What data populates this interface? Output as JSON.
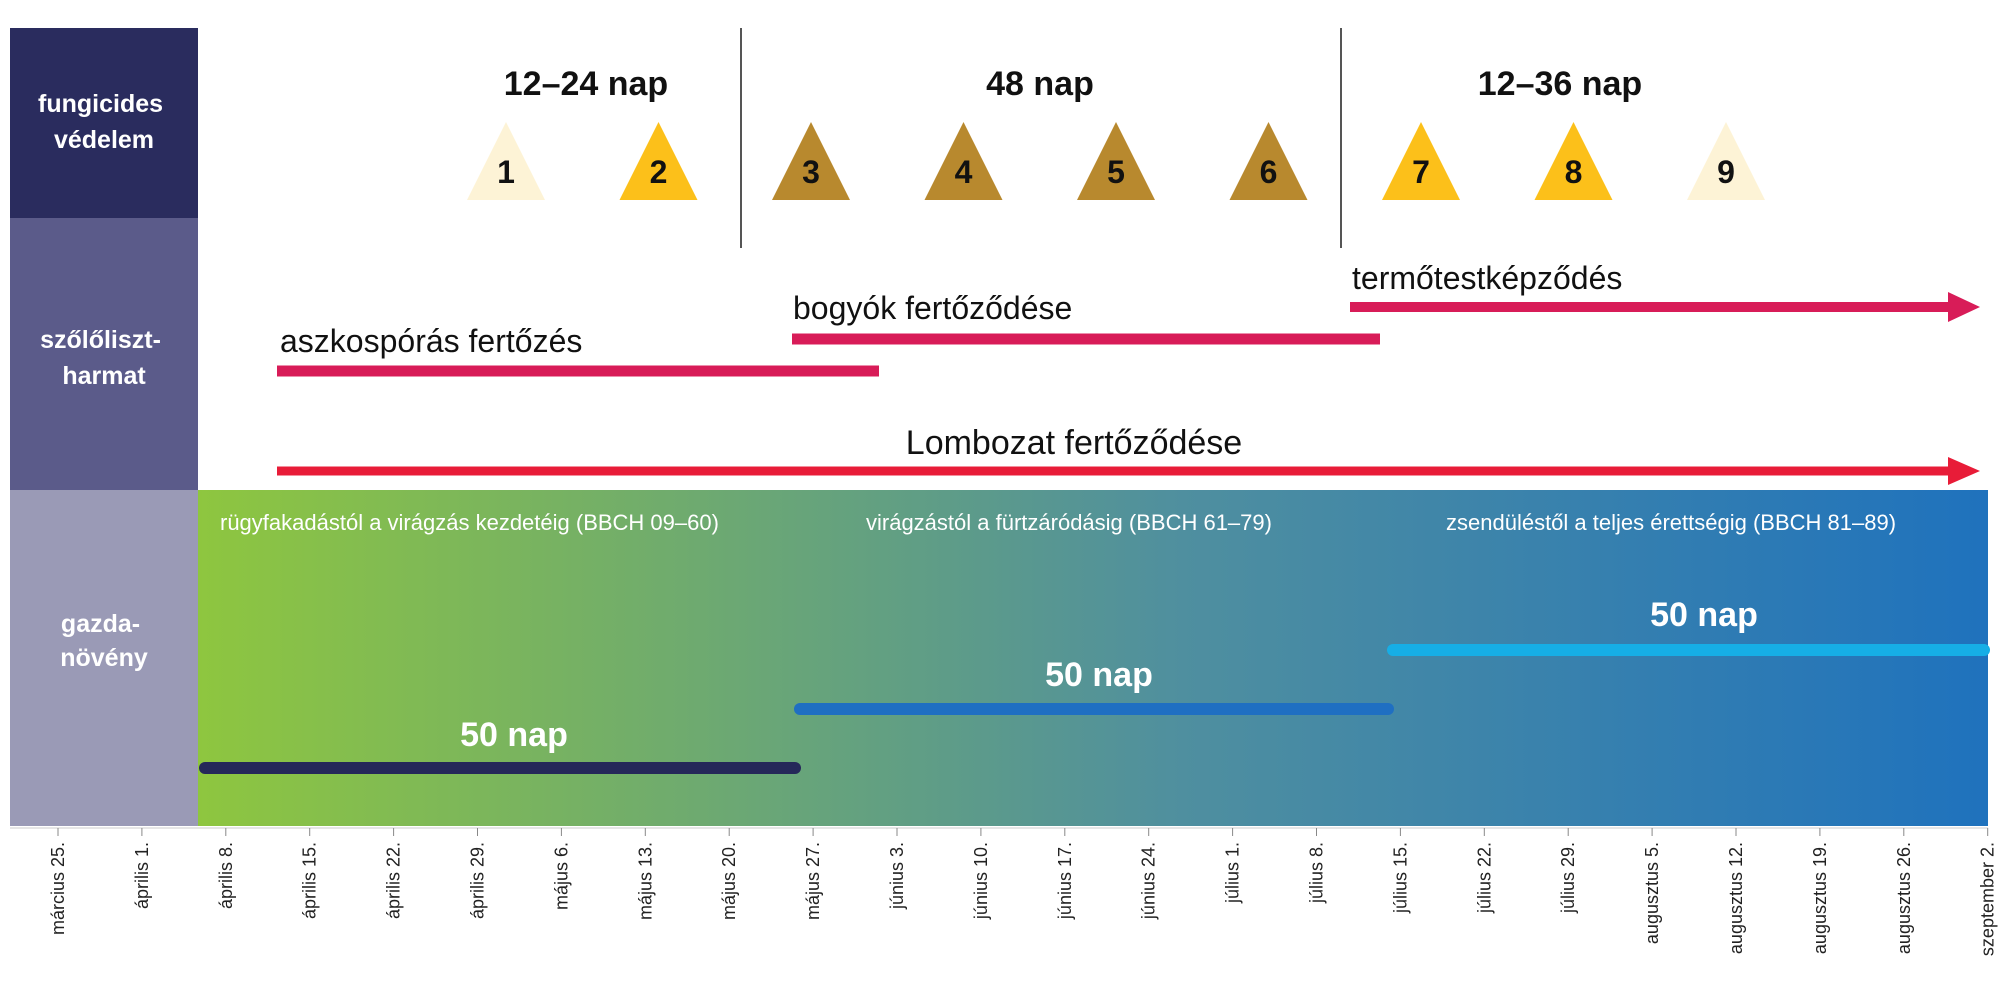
{
  "rows": [
    {
      "label_lines": [
        "fungicides",
        "védelem"
      ],
      "color": "#2a2c5e"
    },
    {
      "label_lines": [
        "szőlőliszt-",
        "harmat"
      ],
      "color": "#5b5b8a"
    },
    {
      "label_lines": [
        "gazda-",
        "növény"
      ],
      "color": "#9a9ab6"
    }
  ],
  "spray_groups": [
    {
      "label": "12–24 nap"
    },
    {
      "label": "48 nap"
    },
    {
      "label": "12–36 nap"
    }
  ],
  "sprays": [
    {
      "number": "1",
      "color": "#fdf3d6"
    },
    {
      "number": "2",
      "color": "#fcc01a"
    },
    {
      "number": "3",
      "color": "#b8892e"
    },
    {
      "number": "4",
      "color": "#b8892e"
    },
    {
      "number": "5",
      "color": "#b8892e"
    },
    {
      "number": "6",
      "color": "#b8892e"
    },
    {
      "number": "7",
      "color": "#fcc01a"
    },
    {
      "number": "8",
      "color": "#fcc01a"
    },
    {
      "number": "9",
      "color": "#fdf3d6"
    }
  ],
  "infections": [
    {
      "label": "aszkospórás fertőzés",
      "color": "#d81c58"
    },
    {
      "label": "bogyók fertőződése",
      "color": "#d81c58"
    },
    {
      "label": "termőtestképződés",
      "color": "#d81c58"
    },
    {
      "label": "Lombozat fertőződése",
      "color": "#e81c38"
    }
  ],
  "phases": [
    {
      "label": "rügyfakadástól a virágzás kezdetéig (BBCH 09–60)",
      "duration": "50 nap",
      "bar_color": "#252859"
    },
    {
      "label": "virágzástól a fürtzáródásig (BBCH 61–79)",
      "duration": "50 nap",
      "bar_color": "#1f6fc2"
    },
    {
      "label": "zsendüléstől a teljes érettségig (BBCH 81–89)",
      "duration": "50 nap",
      "bar_color": "#16aee6"
    }
  ],
  "host_gradient": [
    "#8ec63f",
    "#4f8f9f",
    "#1f72bd"
  ],
  "dates": [
    "március 25.",
    "április 1.",
    "április 8.",
    "április 15.",
    "április 22.",
    "április 29.",
    "május 6.",
    "május 13.",
    "május 20.",
    "május 27.",
    "június 3.",
    "június 10.",
    "június 17.",
    "június 24.",
    "július 1.",
    "július 8.",
    "július 15.",
    "július 22.",
    "július 29.",
    "augusztus 5.",
    "augusztus 12.",
    "augusztus 19.",
    "augusztus 26.",
    "szeptember 2."
  ]
}
